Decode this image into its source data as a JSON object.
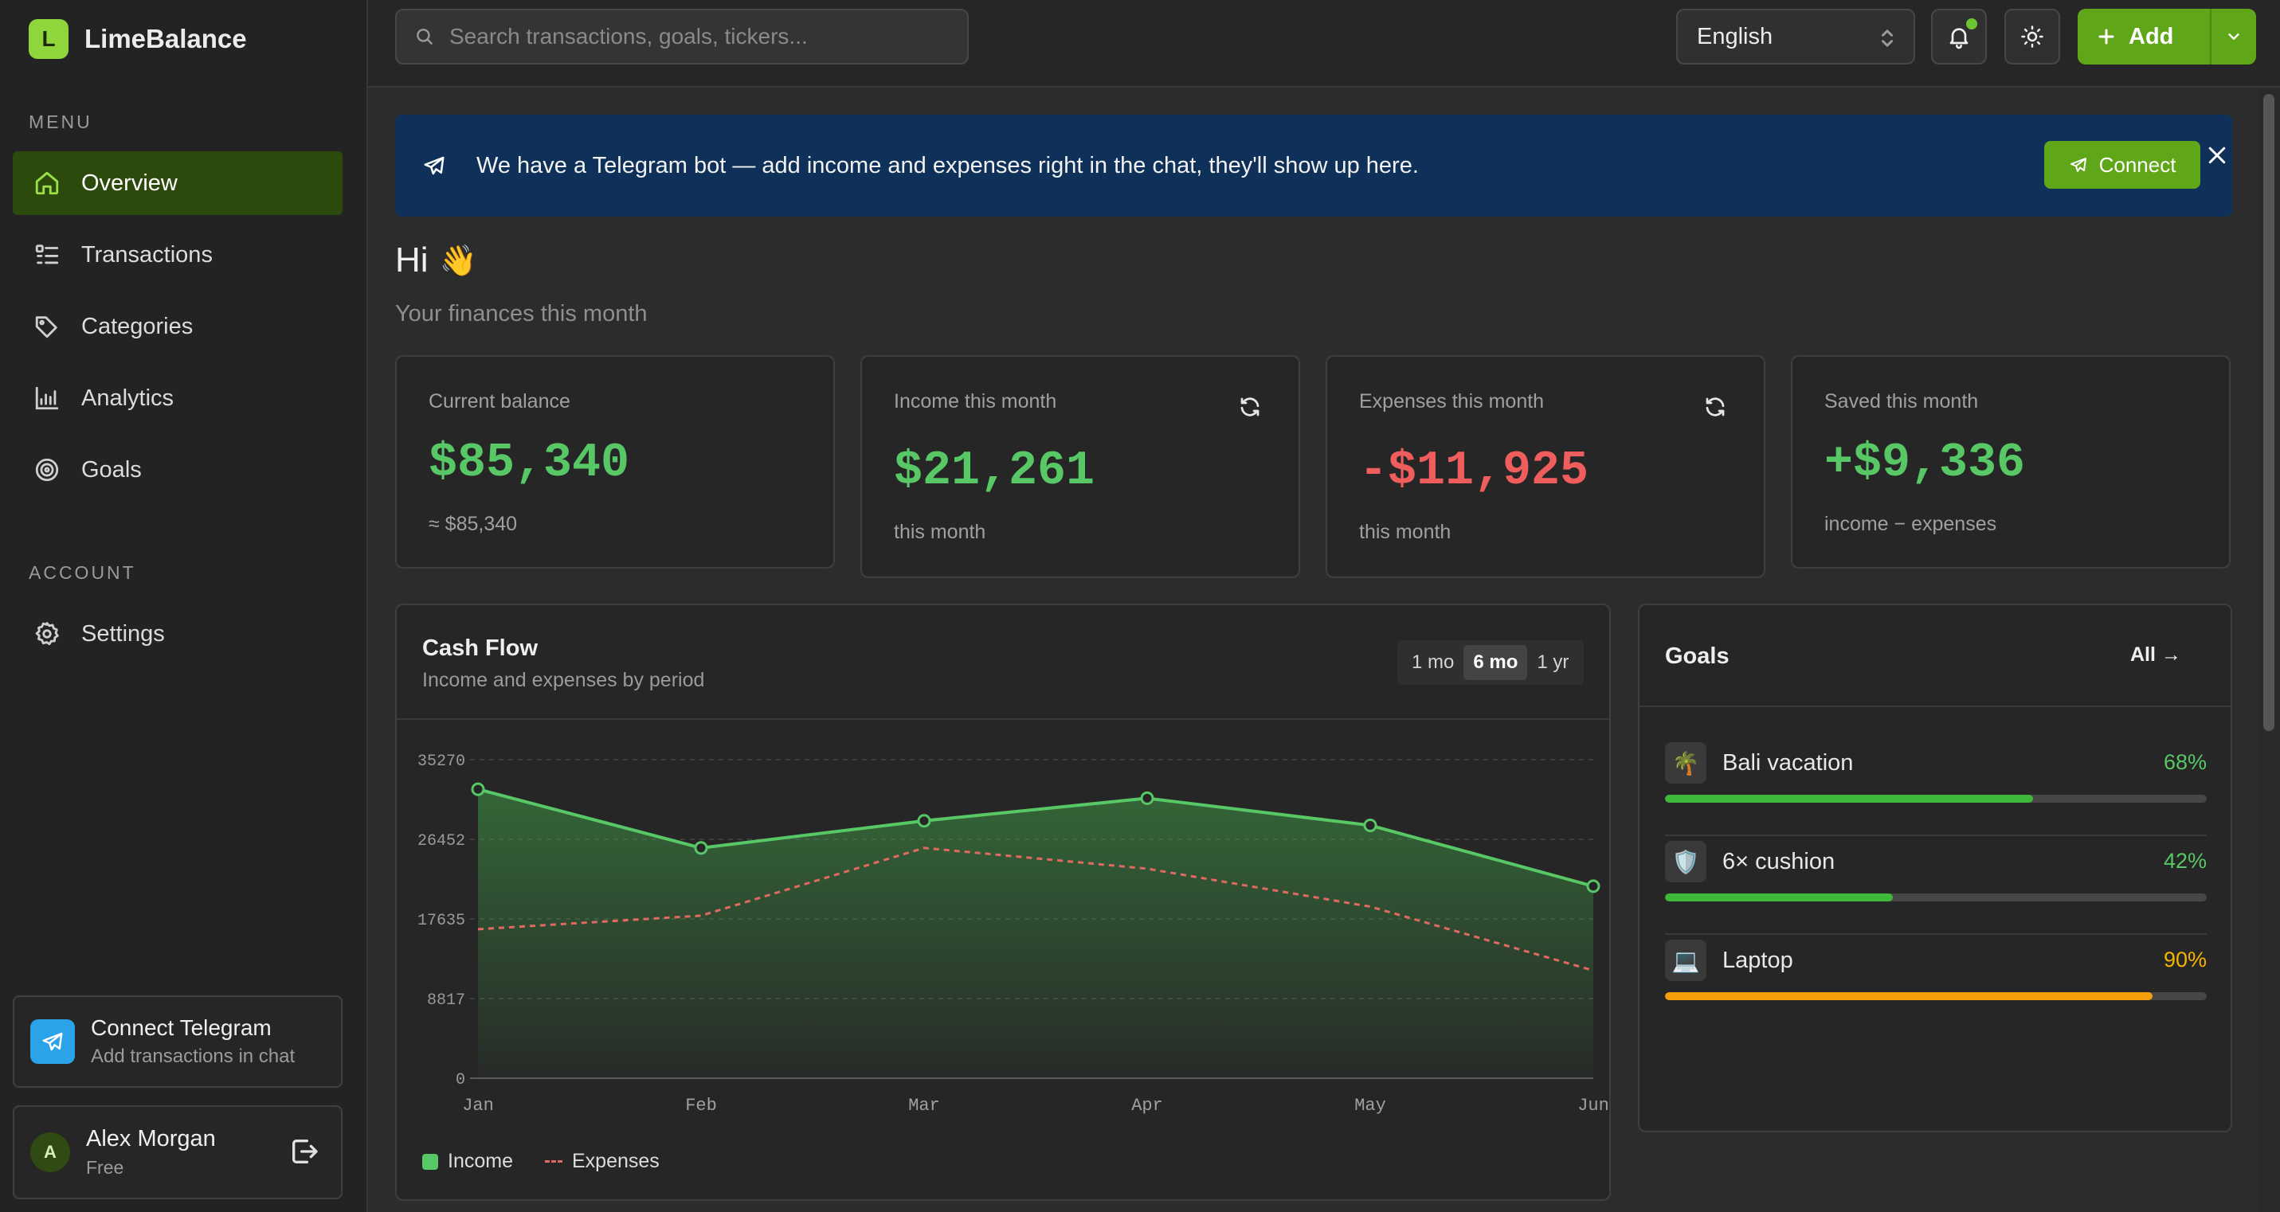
{
  "brand": {
    "logo_letter": "L",
    "name": "LimeBalance"
  },
  "sidebar": {
    "menu_label": "MENU",
    "items": [
      {
        "label": "Overview",
        "icon": "home-icon",
        "active": true
      },
      {
        "label": "Transactions",
        "icon": "list-icon",
        "active": false
      },
      {
        "label": "Categories",
        "icon": "tag-icon",
        "active": false
      },
      {
        "label": "Analytics",
        "icon": "chart-icon",
        "active": false
      },
      {
        "label": "Goals",
        "icon": "target-icon",
        "active": false
      }
    ],
    "account_label": "ACCOUNT",
    "account_items": [
      {
        "label": "Settings",
        "icon": "gear-icon"
      }
    ],
    "telegram": {
      "title": "Connect Telegram",
      "subtitle": "Add transactions in chat"
    },
    "user": {
      "initial": "A",
      "name": "Alex Morgan",
      "plan": "Free"
    }
  },
  "topbar": {
    "search_placeholder": "Search transactions, goals, tickers...",
    "language": "English",
    "add_label": "Add"
  },
  "banner": {
    "text": "We have a Telegram bot — add income and expenses right in the chat, they'll show up here.",
    "connect_label": "Connect"
  },
  "greeting": {
    "title": "Hi",
    "emoji": "👋",
    "subtitle": "Your finances this month"
  },
  "stats": [
    {
      "label": "Current balance",
      "value": "$85,340",
      "sub": "≈ $85,340",
      "tone": "green",
      "refresh": false
    },
    {
      "label": "Income this month",
      "value": "$21,261",
      "sub": "this month",
      "tone": "green",
      "refresh": true
    },
    {
      "label": "Expenses this month",
      "value": "-$11,925",
      "sub": "this month",
      "tone": "red",
      "refresh": true
    },
    {
      "label": "Saved this month",
      "value": "+$9,336",
      "sub": "income − expenses",
      "tone": "green",
      "refresh": false
    }
  ],
  "cashflow": {
    "title": "Cash Flow",
    "subtitle": "Income and expenses by period",
    "periods": [
      {
        "label": "1 mo",
        "active": false
      },
      {
        "label": "6 mo",
        "active": true
      },
      {
        "label": "1 yr",
        "active": false
      }
    ],
    "legend": {
      "income": "Income",
      "expenses": "Expenses"
    }
  },
  "chart_data": {
    "type": "area",
    "categories": [
      "Jan",
      "Feb",
      "Mar",
      "Apr",
      "May",
      "Jun"
    ],
    "y_ticks": [
      "35270",
      "26452",
      "17635",
      "8817",
      "0"
    ],
    "ylim": [
      0,
      35270
    ],
    "grid": true,
    "legend_position": "bottom-left",
    "series": [
      {
        "name": "Income",
        "color": "#58c766",
        "style": "solid-area",
        "values": [
          32000,
          25500,
          28500,
          31000,
          28000,
          21261
        ]
      },
      {
        "name": "Expenses",
        "color": "#e06a60",
        "style": "dashed",
        "values": [
          16500,
          18000,
          25500,
          23200,
          19000,
          11925
        ]
      }
    ]
  },
  "goals": {
    "title": "Goals",
    "all_label": "All →",
    "items": [
      {
        "name": "Bali vacation",
        "emoji": "🌴",
        "percent": 68,
        "percent_label": "68%",
        "color": "#58c766",
        "fill": "#3fb83a"
      },
      {
        "name": "6× cushion",
        "emoji": "🛡️",
        "percent": 42,
        "percent_label": "42%",
        "color": "#58c766",
        "fill": "#3fb83a"
      },
      {
        "name": "Laptop",
        "emoji": "💻",
        "percent": 90,
        "percent_label": "90%",
        "color": "#f5b400",
        "fill": "#f59f0b"
      }
    ]
  }
}
